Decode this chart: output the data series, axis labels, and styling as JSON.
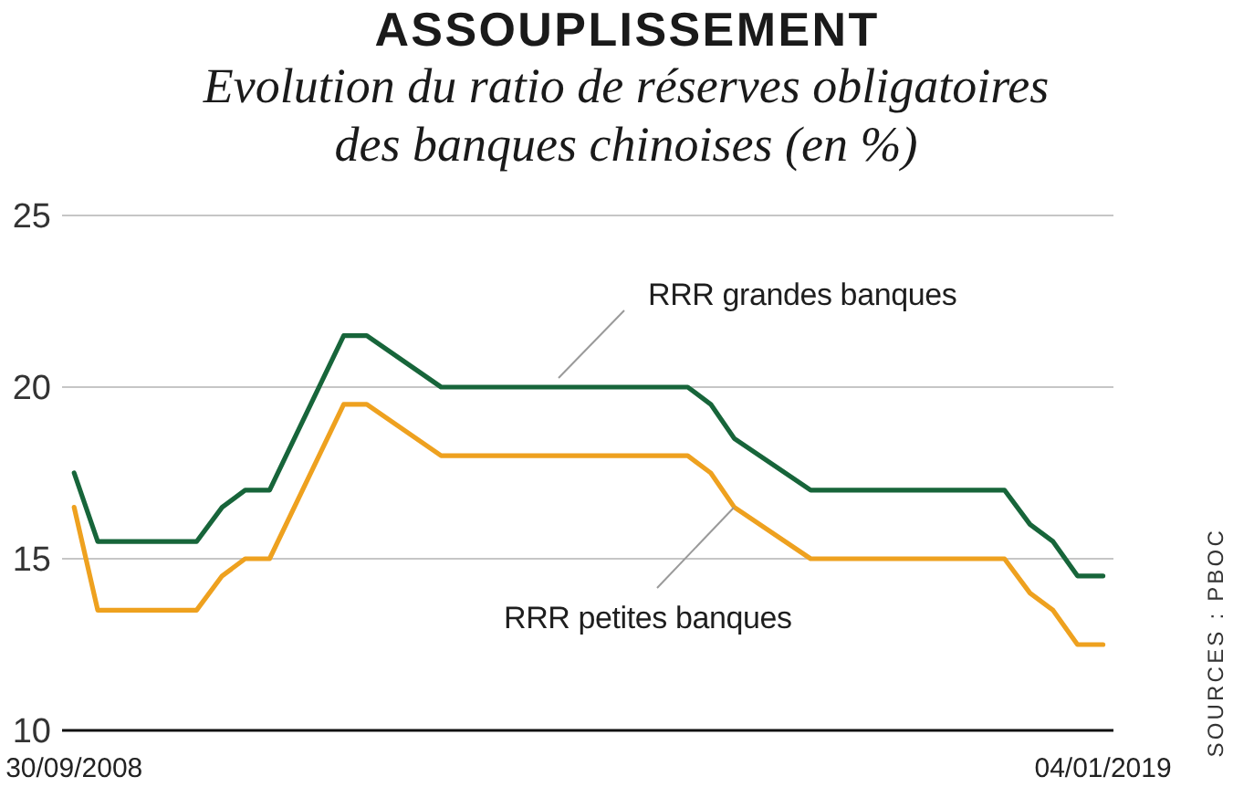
{
  "chart_data": {
    "type": "line",
    "title": "ASSOUPLISSEMENT",
    "subtitle": "Evolution du ratio de réserves obligatoires des banques chinoises (en %)",
    "annotations": [
      "SOURCES : PBOC"
    ],
    "x": [
      "2008-09-30",
      "2008-12-25",
      "2009-12-20",
      "2010-03-23",
      "2010-06-15",
      "2010-09-12",
      "2011-06-09",
      "2011-09-01",
      "2012-05-29",
      "2014-11-13",
      "2015-02-05",
      "2015-05-02",
      "2016-02-04",
      "2018-01-10",
      "2018-04-13",
      "2018-07-06",
      "2018-10-03",
      "2019-01-04"
    ],
    "series": [
      {
        "name": "RRR grandes banques",
        "color": "#17653a",
        "values": [
          17.5,
          15.5,
          15.5,
          16.5,
          17,
          17,
          21.5,
          21.5,
          20,
          20,
          19.5,
          18.5,
          17,
          17,
          16,
          15.5,
          14.5,
          14.5
        ]
      },
      {
        "name": "RRR petites banques",
        "color": "#eea11f",
        "values": [
          16.5,
          13.5,
          13.5,
          14.5,
          15,
          15,
          19.5,
          19.5,
          18,
          18,
          17.5,
          16.5,
          15,
          15,
          14,
          13.5,
          12.5,
          12.5
        ]
      }
    ],
    "xlim": [
      "2008-08-17",
      "2019-02-11"
    ],
    "xticks": [
      {
        "value": "2008-09-30",
        "label": "30/09/2008"
      },
      {
        "value": "2019-01-04",
        "label": "04/01/2019"
      }
    ],
    "ylim": [
      10,
      25
    ],
    "yticks": [
      10,
      15,
      20,
      25
    ],
    "grid": "y"
  }
}
